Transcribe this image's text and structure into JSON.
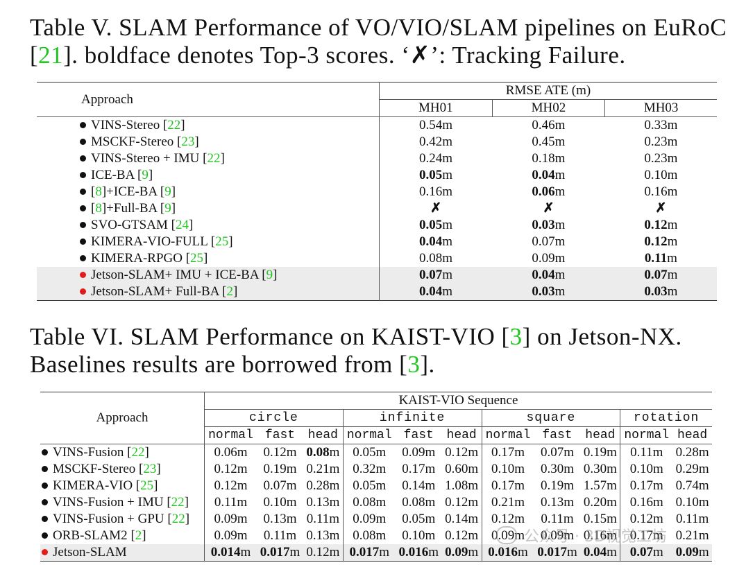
{
  "table5": {
    "caption_pre": "Table V. SLAM Performance of VO/VIO/SLAM pipelines on EuRoC",
    "caption_ref": "21",
    "caption_post": "]. boldface denotes Top-3 scores. ‘✗’: Tracking Failure.",
    "header_approach": "Approach",
    "header_group": "RMSE ATE (m)",
    "sequences": [
      "MH01",
      "MH02",
      "MH03"
    ],
    "rows": [
      {
        "dot": "black",
        "name": [
          {
            "t": "VINS-Stereo "
          },
          {
            "t": "[",
            "p": 1
          },
          {
            "t": "22",
            "r": 1
          },
          {
            "t": "]"
          }
        ],
        "vals": [
          [
            {
              "t": "0.54m"
            }
          ],
          [
            {
              "t": "0.46m"
            }
          ],
          [
            {
              "t": "0.33m"
            }
          ]
        ]
      },
      {
        "dot": "black",
        "name": [
          {
            "t": "MSCKF-Stereo "
          },
          {
            "t": "["
          },
          {
            "t": "23",
            "r": 1
          },
          {
            "t": "]"
          }
        ],
        "vals": [
          [
            {
              "t": "0.42m"
            }
          ],
          [
            {
              "t": "0.45m"
            }
          ],
          [
            {
              "t": "0.23m"
            }
          ]
        ]
      },
      {
        "dot": "black",
        "name": [
          {
            "t": "VINS-Stereo + IMU "
          },
          {
            "t": "["
          },
          {
            "t": "22",
            "r": 1
          },
          {
            "t": "]"
          }
        ],
        "vals": [
          [
            {
              "t": "0.24m"
            }
          ],
          [
            {
              "t": "0.18m"
            }
          ],
          [
            {
              "t": "0.23m"
            }
          ]
        ]
      },
      {
        "dot": "black",
        "name": [
          {
            "t": "ICE-BA "
          },
          {
            "t": "["
          },
          {
            "t": "9",
            "r": 1
          },
          {
            "t": "]"
          }
        ],
        "vals": [
          [
            {
              "t": "0.05",
              "b": 1
            },
            {
              "t": "m"
            }
          ],
          [
            {
              "t": "0.04",
              "b": 1
            },
            {
              "t": "m"
            }
          ],
          [
            {
              "t": "0.10m"
            }
          ]
        ]
      },
      {
        "dot": "black",
        "name": [
          {
            "t": "["
          },
          {
            "t": "8",
            "r": 1
          },
          {
            "t": "]+ICE-BA "
          },
          {
            "t": "["
          },
          {
            "t": "9",
            "r": 1
          },
          {
            "t": "]"
          }
        ],
        "vals": [
          [
            {
              "t": "0.16m"
            }
          ],
          [
            {
              "t": "0.06",
              "b": 1
            },
            {
              "t": "m"
            }
          ],
          [
            {
              "t": "0.16m"
            }
          ]
        ]
      },
      {
        "dot": "black",
        "name": [
          {
            "t": "["
          },
          {
            "t": "8",
            "r": 1
          },
          {
            "t": "]+Full-BA "
          },
          {
            "t": "["
          },
          {
            "t": "9",
            "r": 1
          },
          {
            "t": "]"
          }
        ],
        "vals": [
          [
            {
              "t": "✗",
              "b": 1
            }
          ],
          [
            {
              "t": "✗",
              "b": 1
            }
          ],
          [
            {
              "t": "✗",
              "b": 1
            }
          ]
        ]
      },
      {
        "dot": "black",
        "name": [
          {
            "t": "SVO-GTSAM "
          },
          {
            "t": "["
          },
          {
            "t": "24",
            "r": 1
          },
          {
            "t": "]"
          }
        ],
        "vals": [
          [
            {
              "t": "0.05",
              "b": 1
            },
            {
              "t": "m"
            }
          ],
          [
            {
              "t": "0.03",
              "b": 1
            },
            {
              "t": "m"
            }
          ],
          [
            {
              "t": "0.12",
              "b": 1
            },
            {
              "t": "m"
            }
          ]
        ]
      },
      {
        "dot": "black",
        "name": [
          {
            "t": "KIMERA-VIO-FULL "
          },
          {
            "t": "["
          },
          {
            "t": "25",
            "r": 1
          },
          {
            "t": "]"
          }
        ],
        "vals": [
          [
            {
              "t": "0.04",
              "b": 1
            },
            {
              "t": "m"
            }
          ],
          [
            {
              "t": "0.07m"
            }
          ],
          [
            {
              "t": "0.12",
              "b": 1
            },
            {
              "t": "m"
            }
          ]
        ]
      },
      {
        "dot": "black",
        "name": [
          {
            "t": "KIMERA-RPGO "
          },
          {
            "t": "["
          },
          {
            "t": "25",
            "r": 1
          },
          {
            "t": "]"
          }
        ],
        "vals": [
          [
            {
              "t": "0.08m"
            }
          ],
          [
            {
              "t": "0.09m"
            }
          ],
          [
            {
              "t": "0.11",
              "b": 1
            },
            {
              "t": "m"
            }
          ]
        ]
      },
      {
        "dot": "red",
        "hl": 1,
        "name": [
          {
            "t": "Jetson-SLAM+ IMU + ICE-BA "
          },
          {
            "t": "["
          },
          {
            "t": "9",
            "r": 1
          },
          {
            "t": "]"
          }
        ],
        "vals": [
          [
            {
              "t": "0.07",
              "b": 1
            },
            {
              "t": "m"
            }
          ],
          [
            {
              "t": "0.04",
              "b": 1
            },
            {
              "t": "m"
            }
          ],
          [
            {
              "t": "0.07",
              "b": 1
            },
            {
              "t": "m"
            }
          ]
        ]
      },
      {
        "dot": "red",
        "hl": 1,
        "name": [
          {
            "t": "Jetson-SLAM+ Full-BA "
          },
          {
            "t": "["
          },
          {
            "t": "2",
            "r": 1
          },
          {
            "t": "]"
          }
        ],
        "vals": [
          [
            {
              "t": "0.04",
              "b": 1
            },
            {
              "t": "m"
            }
          ],
          [
            {
              "t": "0.03",
              "b": 1
            },
            {
              "t": "m"
            }
          ],
          [
            {
              "t": "0.03",
              "b": 1
            },
            {
              "t": "m"
            }
          ]
        ]
      }
    ]
  },
  "table6": {
    "caption_line1_pre": "Table VI. SLAM Performance on KAIST-VIO [",
    "caption_line1_ref": "3",
    "caption_line1_post": "] on Jetson-NX.",
    "caption_line2_pre": "Baselines results are borrowed from [",
    "caption_line2_ref": "3",
    "caption_line2_post": "].",
    "header_approach": "Approach",
    "header_group": "KAIST-VIO Sequence",
    "groups": [
      {
        "name": "circle",
        "subs": [
          "normal",
          "fast",
          "head"
        ]
      },
      {
        "name": "infinite",
        "subs": [
          "normal",
          "fast",
          "head"
        ]
      },
      {
        "name": "square",
        "subs": [
          "normal",
          "fast",
          "head"
        ]
      },
      {
        "name": "rotation",
        "subs": [
          "normal",
          "head"
        ]
      }
    ],
    "rows": [
      {
        "dot": "black",
        "name": [
          {
            "t": "VINS-Fusion "
          },
          {
            "t": "["
          },
          {
            "t": "22",
            "r": 1
          },
          {
            "t": "]"
          }
        ],
        "vals": [
          [
            {
              "t": "0.06m"
            }
          ],
          [
            {
              "t": "0.12m"
            }
          ],
          [
            {
              "t": "0.08",
              "b": 1
            },
            {
              "t": "m"
            }
          ],
          [
            {
              "t": "0.05m"
            }
          ],
          [
            {
              "t": "0.09m"
            }
          ],
          [
            {
              "t": "0.12m"
            }
          ],
          [
            {
              "t": "0.17m"
            }
          ],
          [
            {
              "t": "0.07m"
            }
          ],
          [
            {
              "t": "0.19m"
            }
          ],
          [
            {
              "t": "0.11m"
            }
          ],
          [
            {
              "t": "0.28m"
            }
          ]
        ]
      },
      {
        "dot": "black",
        "name": [
          {
            "t": "MSCKF-Stereo "
          },
          {
            "t": "["
          },
          {
            "t": "23",
            "r": 1
          },
          {
            "t": "]"
          }
        ],
        "vals": [
          [
            {
              "t": "0.12m"
            }
          ],
          [
            {
              "t": "0.19m"
            }
          ],
          [
            {
              "t": "0.21m"
            }
          ],
          [
            {
              "t": "0.32m"
            }
          ],
          [
            {
              "t": "0.17m"
            }
          ],
          [
            {
              "t": "0.60m"
            }
          ],
          [
            {
              "t": "0.10m"
            }
          ],
          [
            {
              "t": "0.30m"
            }
          ],
          [
            {
              "t": "0.30m"
            }
          ],
          [
            {
              "t": "0.10m"
            }
          ],
          [
            {
              "t": "0.29m"
            }
          ]
        ]
      },
      {
        "dot": "black",
        "name": [
          {
            "t": "KIMERA-VIO "
          },
          {
            "t": "["
          },
          {
            "t": "25",
            "r": 1
          },
          {
            "t": "]"
          }
        ],
        "vals": [
          [
            {
              "t": "0.12m"
            }
          ],
          [
            {
              "t": "0.07m"
            }
          ],
          [
            {
              "t": "0.28m"
            }
          ],
          [
            {
              "t": "0.05m"
            }
          ],
          [
            {
              "t": "0.14m"
            }
          ],
          [
            {
              "t": "1.08m"
            }
          ],
          [
            {
              "t": "0.17m"
            }
          ],
          [
            {
              "t": "0.19m"
            }
          ],
          [
            {
              "t": "1.57m"
            }
          ],
          [
            {
              "t": "0.17m"
            }
          ],
          [
            {
              "t": "0.74m"
            }
          ]
        ]
      },
      {
        "dot": "black",
        "name": [
          {
            "t": "VINS-Fusion + IMU "
          },
          {
            "t": "["
          },
          {
            "t": "22",
            "r": 1
          },
          {
            "t": "]"
          }
        ],
        "vals": [
          [
            {
              "t": "0.11m"
            }
          ],
          [
            {
              "t": "0.10m"
            }
          ],
          [
            {
              "t": "0.13m"
            }
          ],
          [
            {
              "t": "0.08m"
            }
          ],
          [
            {
              "t": "0.08m"
            }
          ],
          [
            {
              "t": "0.12m"
            }
          ],
          [
            {
              "t": "0.21m"
            }
          ],
          [
            {
              "t": "0.13m"
            }
          ],
          [
            {
              "t": "0.20m"
            }
          ],
          [
            {
              "t": "0.16m"
            }
          ],
          [
            {
              "t": "0.10m"
            }
          ]
        ]
      },
      {
        "dot": "black",
        "name": [
          {
            "t": "VINS-Fusion + GPU "
          },
          {
            "t": "["
          },
          {
            "t": "22",
            "r": 1
          },
          {
            "t": "]"
          }
        ],
        "vals": [
          [
            {
              "t": "0.09m"
            }
          ],
          [
            {
              "t": "0.13m"
            }
          ],
          [
            {
              "t": "0.11m"
            }
          ],
          [
            {
              "t": "0.09m"
            }
          ],
          [
            {
              "t": "0.05m"
            }
          ],
          [
            {
              "t": "0.14m"
            }
          ],
          [
            {
              "t": "0.12m"
            }
          ],
          [
            {
              "t": "0.11m"
            }
          ],
          [
            {
              "t": "0.15m"
            }
          ],
          [
            {
              "t": "0.12m"
            }
          ],
          [
            {
              "t": "0.11m"
            }
          ]
        ]
      },
      {
        "dot": "black",
        "name": [
          {
            "t": "ORB-SLAM2 "
          },
          {
            "t": "["
          },
          {
            "t": "2",
            "r": 1
          },
          {
            "t": "]"
          }
        ],
        "vals": [
          [
            {
              "t": "0.09m"
            }
          ],
          [
            {
              "t": "0.11m"
            }
          ],
          [
            {
              "t": "0.13m"
            }
          ],
          [
            {
              "t": "0.08m"
            }
          ],
          [
            {
              "t": "0.10m"
            }
          ],
          [
            {
              "t": "0.12m"
            }
          ],
          [
            {
              "t": "0.09m"
            }
          ],
          [
            {
              "t": "0.09m"
            }
          ],
          [
            {
              "t": "0.16m"
            }
          ],
          [
            {
              "t": "0.17m"
            }
          ],
          [
            {
              "t": "0.21m"
            }
          ]
        ]
      },
      {
        "dot": "red",
        "hl": 1,
        "name": [
          {
            "t": "Jetson-SLAM"
          }
        ],
        "vals": [
          [
            {
              "t": "0.014",
              "b": 1
            },
            {
              "t": "m"
            }
          ],
          [
            {
              "t": "0.017",
              "b": 1
            },
            {
              "t": "m"
            }
          ],
          [
            {
              "t": "0.12m"
            }
          ],
          [
            {
              "t": "0.017",
              "b": 1
            },
            {
              "t": "m"
            }
          ],
          [
            {
              "t": "0.016",
              "b": 1
            },
            {
              "t": "m"
            }
          ],
          [
            {
              "t": "0.09",
              "b": 1
            },
            {
              "t": "m"
            }
          ],
          [
            {
              "t": "0.016",
              "b": 1
            },
            {
              "t": "m"
            }
          ],
          [
            {
              "t": "0.017",
              "b": 1
            },
            {
              "t": "m"
            }
          ],
          [
            {
              "t": "0.04",
              "b": 1
            },
            {
              "t": "m"
            }
          ],
          [
            {
              "t": "0.07",
              "b": 1
            },
            {
              "t": "m"
            }
          ],
          [
            {
              "t": "0.09",
              "b": 1
            },
            {
              "t": "m"
            }
          ]
        ]
      }
    ]
  },
  "watermark": {
    "text": "公众号 · 3D视觉工坊",
    "icon": "wechat-logo-icon"
  },
  "colors": {
    "ref": "#22c422",
    "highlight_row": "#ececec",
    "red_dot": "#e21b1b"
  }
}
